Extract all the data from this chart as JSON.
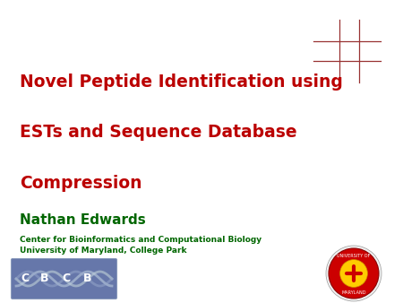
{
  "background_color": "#ffffff",
  "title_line1": "Novel Peptide Identification using",
  "title_line2": "ESTs and Sequence Database",
  "title_line3": "Compression",
  "title_color": "#bb0000",
  "title_fontsize": 13.5,
  "title_bold": true,
  "author_name": "Nathan Edwards",
  "author_color": "#006600",
  "author_fontsize": 11,
  "author_bold": true,
  "affil_line1": "Center for Bioinformatics and Computational Biology",
  "affil_line2": "University of Maryland, College Park",
  "affil_color": "#006600",
  "affil_fontsize": 6.5,
  "affil_bold": true,
  "cross_color": "#993333",
  "cbcb_bg_color": "#6677aa"
}
